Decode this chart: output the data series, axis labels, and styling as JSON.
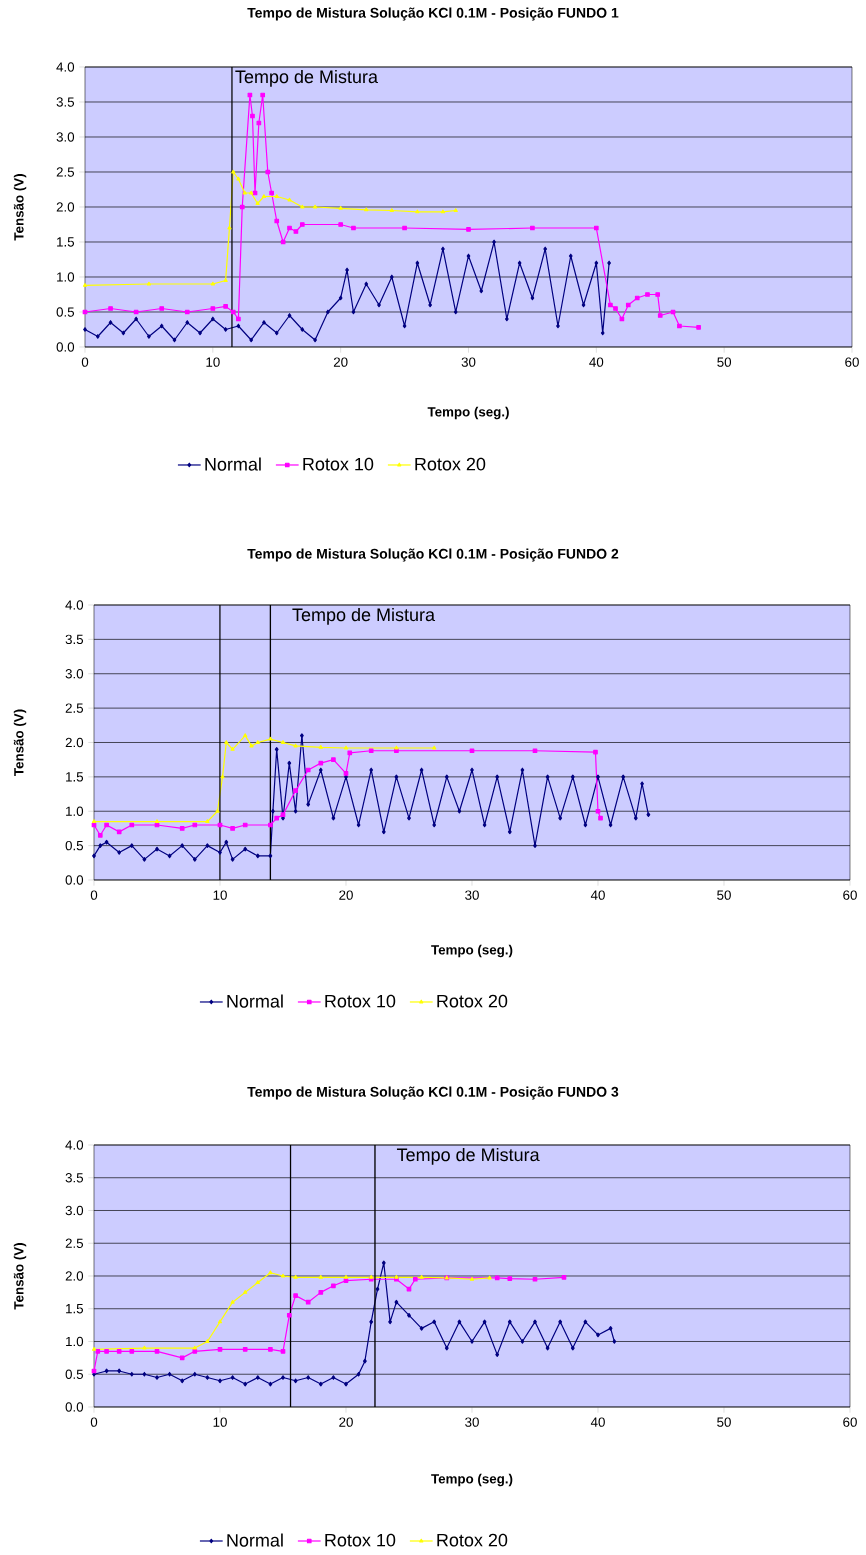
{
  "chart_data": [
    {
      "type": "line",
      "title": "Tempo de Mistura Solução KCl 0.1M - Posição FUNDO 1",
      "xlabel": "Tempo (seg.)",
      "ylabel": "Tensão (V)",
      "xlim": [
        0,
        60
      ],
      "ylim": [
        0,
        4
      ],
      "xticks": [
        0,
        10,
        20,
        30,
        40,
        50,
        60
      ],
      "yticks": [
        {
          "value": 0,
          "label": "0.0"
        },
        {
          "value": 0.5,
          "label": "0.5"
        },
        {
          "value": 1,
          "label": "1.0"
        },
        {
          "value": 1.5,
          "label": "1.5"
        },
        {
          "value": 2,
          "label": "2.0"
        },
        {
          "value": 2.5,
          "label": "2.5"
        },
        {
          "value": 3,
          "label": "3.0"
        },
        {
          "value": 3.5,
          "label": "3.5"
        },
        {
          "value": 4,
          "label": "4.0"
        }
      ],
      "grid": "y",
      "legend": "bottom",
      "ref_lines": [
        {
          "axis": "x",
          "value": 11.5,
          "label": "Tempo de Mistura",
          "color": "#000000"
        }
      ],
      "series": [
        {
          "name": "Normal",
          "color": "#000080",
          "marker": "diamond",
          "x": [
            0,
            1,
            2,
            3,
            4,
            5,
            6,
            7,
            8,
            9,
            10,
            11,
            12,
            13,
            14,
            15,
            16,
            17,
            18,
            19,
            20,
            20.5,
            21,
            22,
            23,
            24,
            25,
            26,
            27,
            28,
            29,
            30,
            31,
            32,
            33,
            34,
            35,
            36,
            37,
            38,
            39,
            40,
            40.5,
            41
          ],
          "values": [
            0.25,
            0.15,
            0.35,
            0.2,
            0.4,
            0.15,
            0.3,
            0.1,
            0.35,
            0.2,
            0.4,
            0.25,
            0.3,
            0.1,
            0.35,
            0.2,
            0.45,
            0.25,
            0.1,
            0.5,
            0.7,
            1.1,
            0.5,
            0.9,
            0.6,
            1.0,
            0.3,
            1.2,
            0.6,
            1.4,
            0.5,
            1.3,
            0.8,
            1.5,
            0.4,
            1.2,
            0.7,
            1.4,
            0.3,
            1.3,
            0.6,
            1.2,
            0.2,
            1.2
          ]
        },
        {
          "name": "Rotox 10",
          "color": "#ff00ff",
          "marker": "square",
          "x": [
            0,
            2,
            4,
            6,
            8,
            10,
            11,
            11.6,
            12,
            12.3,
            12.9,
            13.1,
            13.3,
            13.6,
            13.9,
            14.3,
            14.6,
            15,
            15.5,
            16,
            16.5,
            17,
            20,
            21,
            25,
            30,
            35,
            40,
            41.1,
            41.5,
            42,
            42.5,
            43.2,
            44,
            44.8,
            45,
            46,
            46.5,
            48
          ],
          "values": [
            0.5,
            0.55,
            0.5,
            0.55,
            0.5,
            0.55,
            0.58,
            0.5,
            0.4,
            2.0,
            3.6,
            3.3,
            2.2,
            3.2,
            3.6,
            2.5,
            2.2,
            1.8,
            1.5,
            1.7,
            1.65,
            1.75,
            1.75,
            1.7,
            1.7,
            1.68,
            1.7,
            1.7,
            0.6,
            0.55,
            0.4,
            0.6,
            0.7,
            0.75,
            0.75,
            0.45,
            0.5,
            0.3,
            0.28
          ]
        },
        {
          "name": "Rotox 20",
          "color": "#ffff00",
          "marker": "triangle",
          "x": [
            0,
            5,
            10,
            11,
            11.3,
            11.6,
            12,
            12.5,
            13,
            13.5,
            14,
            15,
            16,
            17,
            18,
            20,
            22,
            24,
            26,
            28,
            29
          ],
          "values": [
            0.88,
            0.9,
            0.9,
            0.95,
            1.7,
            2.5,
            2.4,
            2.2,
            2.2,
            2.05,
            2.15,
            2.15,
            2.1,
            2.0,
            2.0,
            1.98,
            1.96,
            1.95,
            1.93,
            1.93,
            1.95
          ]
        }
      ]
    },
    {
      "type": "line",
      "title": "Tempo de Mistura Solução KCl 0.1M - Posição FUNDO 2",
      "xlabel": "Tempo (seg.)",
      "ylabel": "Tensão (V)",
      "xlim": [
        0,
        60
      ],
      "ylim": [
        0,
        4
      ],
      "xticks": [
        0,
        10,
        20,
        30,
        40,
        50,
        60
      ],
      "yticks": [
        {
          "value": 0,
          "label": "0.0"
        },
        {
          "value": 0.5,
          "label": "0.5"
        },
        {
          "value": 1,
          "label": "1.0"
        },
        {
          "value": 1.5,
          "label": "1.5"
        },
        {
          "value": 2,
          "label": "2.0"
        },
        {
          "value": 2.5,
          "label": "2.5"
        },
        {
          "value": 3,
          "label": "3.0"
        },
        {
          "value": 3.5,
          "label": "3.5"
        },
        {
          "value": 4,
          "label": "4.0"
        }
      ],
      "grid": "y",
      "legend": "bottom",
      "ref_lines": [
        {
          "axis": "x",
          "value": 10,
          "color": "#000000"
        },
        {
          "axis": "x",
          "value": 14,
          "label": "Tempo de Mistura",
          "color": "#000000"
        }
      ],
      "series": [
        {
          "name": "Normal",
          "color": "#000080",
          "marker": "diamond",
          "x": [
            0,
            0.5,
            1,
            2,
            3,
            4,
            5,
            6,
            7,
            8,
            9,
            10,
            10.5,
            11,
            12,
            13,
            14,
            14.2,
            14.5,
            15,
            15.5,
            16,
            16.5,
            17,
            18,
            19,
            20,
            21,
            22,
            23,
            24,
            25,
            26,
            27,
            28,
            29,
            30,
            31,
            32,
            33,
            34,
            35,
            36,
            37,
            38,
            39,
            40,
            41,
            42,
            43,
            43.5,
            44
          ],
          "values": [
            0.35,
            0.5,
            0.55,
            0.4,
            0.5,
            0.3,
            0.45,
            0.35,
            0.5,
            0.3,
            0.5,
            0.4,
            0.55,
            0.3,
            0.45,
            0.35,
            0.35,
            1.0,
            1.9,
            0.9,
            1.7,
            1.0,
            2.1,
            1.1,
            1.6,
            0.9,
            1.5,
            0.8,
            1.6,
            0.7,
            1.5,
            0.9,
            1.6,
            0.8,
            1.5,
            1.0,
            1.6,
            0.8,
            1.5,
            0.7,
            1.6,
            0.5,
            1.5,
            0.9,
            1.5,
            0.8,
            1.5,
            0.8,
            1.5,
            0.9,
            1.4,
            0.95
          ]
        },
        {
          "name": "Rotox 10",
          "color": "#ff00ff",
          "marker": "square",
          "x": [
            0,
            0.5,
            1,
            2,
            3,
            5,
            7,
            8,
            10,
            11,
            12,
            14,
            14.5,
            15,
            16,
            17,
            18,
            19,
            20,
            20.3,
            22,
            24,
            30,
            35,
            39.8,
            40,
            40.2
          ],
          "values": [
            0.8,
            0.65,
            0.8,
            0.7,
            0.8,
            0.8,
            0.75,
            0.8,
            0.8,
            0.75,
            0.8,
            0.8,
            0.9,
            0.95,
            1.3,
            1.6,
            1.7,
            1.75,
            1.55,
            1.85,
            1.88,
            1.88,
            1.88,
            1.88,
            1.86,
            1.0,
            0.9
          ]
        },
        {
          "name": "Rotox 20",
          "color": "#ffff00",
          "marker": "triangle",
          "x": [
            0,
            5,
            9,
            9.8,
            10.2,
            10.5,
            11,
            12,
            12.5,
            13,
            14,
            15,
            16,
            18,
            20,
            24,
            27
          ],
          "values": [
            0.85,
            0.85,
            0.85,
            1.0,
            1.5,
            2.0,
            1.9,
            2.1,
            1.95,
            2.0,
            2.05,
            2.0,
            1.95,
            1.93,
            1.92,
            1.92,
            1.92
          ]
        }
      ]
    },
    {
      "type": "line",
      "title": "Tempo de Mistura Solução KCl 0.1M - Posição FUNDO 3",
      "xlabel": "Tempo (seg.)",
      "ylabel": "Tensão (V)",
      "xlim": [
        0,
        60
      ],
      "ylim": [
        0,
        4
      ],
      "xticks": [
        0,
        10,
        20,
        30,
        40,
        50,
        60
      ],
      "yticks": [
        {
          "value": 0,
          "label": "0.0"
        },
        {
          "value": 0.5,
          "label": "0.5"
        },
        {
          "value": 1,
          "label": "1.0"
        },
        {
          "value": 1.5,
          "label": "1.5"
        },
        {
          "value": 2,
          "label": "2.0"
        },
        {
          "value": 2.5,
          "label": "2.5"
        },
        {
          "value": 3,
          "label": "3.0"
        },
        {
          "value": 3.5,
          "label": "3.5"
        },
        {
          "value": 4,
          "label": "4.0"
        }
      ],
      "grid": "y",
      "legend": "bottom",
      "ref_lines": [
        {
          "axis": "x",
          "value": 15.6,
          "color": "#000000"
        },
        {
          "axis": "x",
          "value": 22.3,
          "label": "Tempo de Mistura",
          "color": "#000000"
        }
      ],
      "series": [
        {
          "name": "Normal",
          "color": "#000080",
          "marker": "diamond",
          "x": [
            0,
            1,
            2,
            3,
            4,
            5,
            6,
            7,
            8,
            9,
            10,
            11,
            12,
            13,
            14,
            15,
            16,
            17,
            18,
            19,
            20,
            21,
            21.5,
            22,
            22.5,
            23,
            23.5,
            24,
            25,
            26,
            27,
            28,
            29,
            30,
            31,
            32,
            33,
            34,
            35,
            36,
            37,
            38,
            39,
            40,
            41,
            41.3
          ],
          "values": [
            0.5,
            0.55,
            0.55,
            0.5,
            0.5,
            0.45,
            0.5,
            0.4,
            0.5,
            0.45,
            0.4,
            0.45,
            0.35,
            0.45,
            0.35,
            0.45,
            0.4,
            0.45,
            0.35,
            0.45,
            0.35,
            0.5,
            0.7,
            1.3,
            1.8,
            2.2,
            1.3,
            1.6,
            1.4,
            1.2,
            1.3,
            0.9,
            1.3,
            1.0,
            1.3,
            0.8,
            1.3,
            1.0,
            1.3,
            0.9,
            1.3,
            0.9,
            1.3,
            1.1,
            1.2,
            1.0
          ]
        },
        {
          "name": "Rotox 10",
          "color": "#ff00ff",
          "marker": "square",
          "x": [
            0,
            0.3,
            1,
            2,
            3,
            5,
            7,
            8,
            10,
            12,
            14,
            15,
            15.5,
            16,
            17,
            18,
            19,
            20,
            22,
            24,
            25,
            25.5,
            28,
            32,
            33,
            35,
            37.3
          ],
          "values": [
            0.55,
            0.85,
            0.85,
            0.85,
            0.85,
            0.85,
            0.75,
            0.85,
            0.88,
            0.88,
            0.88,
            0.85,
            1.4,
            1.7,
            1.6,
            1.75,
            1.85,
            1.93,
            1.95,
            1.95,
            1.8,
            1.95,
            1.97,
            1.97,
            1.96,
            1.95,
            1.98
          ]
        },
        {
          "name": "Rotox 20",
          "color": "#ffff00",
          "marker": "triangle",
          "x": [
            0,
            4,
            8,
            9,
            10,
            11,
            12,
            13,
            14,
            15,
            16,
            18,
            20,
            22,
            24,
            26,
            28,
            30,
            31.4
          ],
          "values": [
            0.88,
            0.9,
            0.9,
            1.0,
            1.3,
            1.6,
            1.75,
            1.9,
            2.05,
            2.0,
            1.98,
            1.98,
            1.98,
            1.98,
            1.98,
            1.98,
            1.97,
            1.95,
            1.97
          ]
        }
      ]
    }
  ]
}
